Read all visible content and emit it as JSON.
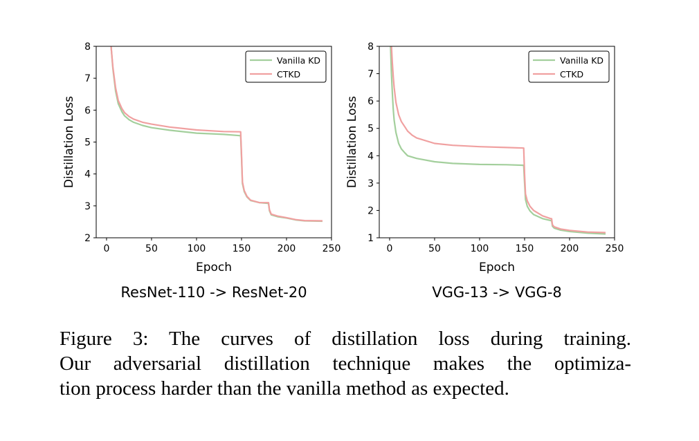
{
  "chart_data": [
    {
      "type": "line",
      "subtitle": "ResNet-110 -> ResNet-20",
      "xlabel": "Epoch",
      "ylabel": "Distillation Loss",
      "xlim": [
        -11.5,
        250
      ],
      "ylim": [
        2,
        8
      ],
      "xticks": [
        0,
        50,
        100,
        150,
        200,
        250
      ],
      "yticks": [
        2,
        3,
        4,
        5,
        6,
        7,
        8
      ],
      "grid": false,
      "legend_position": "top-right",
      "series": [
        {
          "name": "Vanilla KD",
          "color": "#a3cf9c",
          "x": [
            5,
            7,
            10,
            13,
            17,
            20,
            25,
            30,
            40,
            50,
            70,
            100,
            130,
            149,
            150,
            151,
            153,
            156,
            160,
            170,
            179,
            180,
            181,
            183,
            190,
            200,
            210,
            220,
            240
          ],
          "y": [
            8.0,
            7.3,
            6.6,
            6.2,
            5.95,
            5.82,
            5.7,
            5.62,
            5.52,
            5.45,
            5.37,
            5.28,
            5.24,
            5.2,
            4.5,
            3.7,
            3.45,
            3.28,
            3.17,
            3.1,
            3.08,
            3.08,
            2.85,
            2.72,
            2.66,
            2.62,
            2.56,
            2.53,
            2.52
          ]
        },
        {
          "name": "CTKD",
          "color": "#f0a0a0",
          "x": [
            5,
            7,
            10,
            13,
            17,
            20,
            25,
            30,
            40,
            50,
            70,
            100,
            130,
            149,
            150,
            151,
            153,
            156,
            160,
            170,
            179,
            180,
            181,
            183,
            190,
            200,
            210,
            220,
            240
          ],
          "y": [
            8.0,
            7.35,
            6.7,
            6.3,
            6.05,
            5.92,
            5.8,
            5.72,
            5.62,
            5.56,
            5.47,
            5.38,
            5.33,
            5.32,
            4.6,
            3.75,
            3.48,
            3.3,
            3.18,
            3.1,
            3.1,
            3.1,
            2.88,
            2.74,
            2.68,
            2.63,
            2.57,
            2.54,
            2.53
          ]
        }
      ]
    },
    {
      "type": "line",
      "subtitle": "VGG-13 -> VGG-8",
      "xlabel": "Epoch",
      "ylabel": "Distillation Loss",
      "xlim": [
        -11.5,
        250
      ],
      "ylim": [
        1,
        8
      ],
      "xticks": [
        0,
        50,
        100,
        150,
        200,
        250
      ],
      "yticks": [
        1,
        2,
        3,
        4,
        5,
        6,
        7,
        8
      ],
      "grid": false,
      "legend_position": "top-right",
      "series": [
        {
          "name": "Vanilla KD",
          "color": "#a3cf9c",
          "x": [
            1,
            2,
            3,
            4,
            5,
            7,
            10,
            13,
            17,
            20,
            30,
            50,
            70,
            100,
            130,
            149,
            150,
            151,
            153,
            156,
            160,
            170,
            179,
            180,
            181,
            183,
            190,
            200,
            220,
            240
          ],
          "y": [
            8.0,
            7.0,
            6.3,
            5.7,
            5.3,
            4.85,
            4.45,
            4.25,
            4.1,
            4.0,
            3.9,
            3.78,
            3.72,
            3.68,
            3.67,
            3.65,
            3.0,
            2.4,
            2.15,
            1.98,
            1.85,
            1.7,
            1.63,
            1.63,
            1.42,
            1.35,
            1.28,
            1.23,
            1.17,
            1.14
          ]
        },
        {
          "name": "CTKD",
          "color": "#f0a0a0",
          "x": [
            2,
            3,
            4,
            5,
            7,
            10,
            13,
            17,
            20,
            25,
            30,
            50,
            70,
            100,
            130,
            149,
            150,
            151,
            153,
            156,
            160,
            170,
            179,
            180,
            181,
            183,
            190,
            200,
            220,
            240
          ],
          "y": [
            8.0,
            7.4,
            6.9,
            6.5,
            5.95,
            5.5,
            5.25,
            5.05,
            4.9,
            4.75,
            4.65,
            4.45,
            4.38,
            4.33,
            4.3,
            4.28,
            3.3,
            2.6,
            2.35,
            2.15,
            2.0,
            1.8,
            1.7,
            1.7,
            1.47,
            1.4,
            1.32,
            1.27,
            1.21,
            1.19
          ]
        }
      ]
    }
  ],
  "caption": {
    "lines": [
      "Figure 3: The curves of distillation loss during training.",
      "Our adversarial distillation technique makes the optimiza-",
      "tion process harder than the vanilla method as expected."
    ]
  }
}
